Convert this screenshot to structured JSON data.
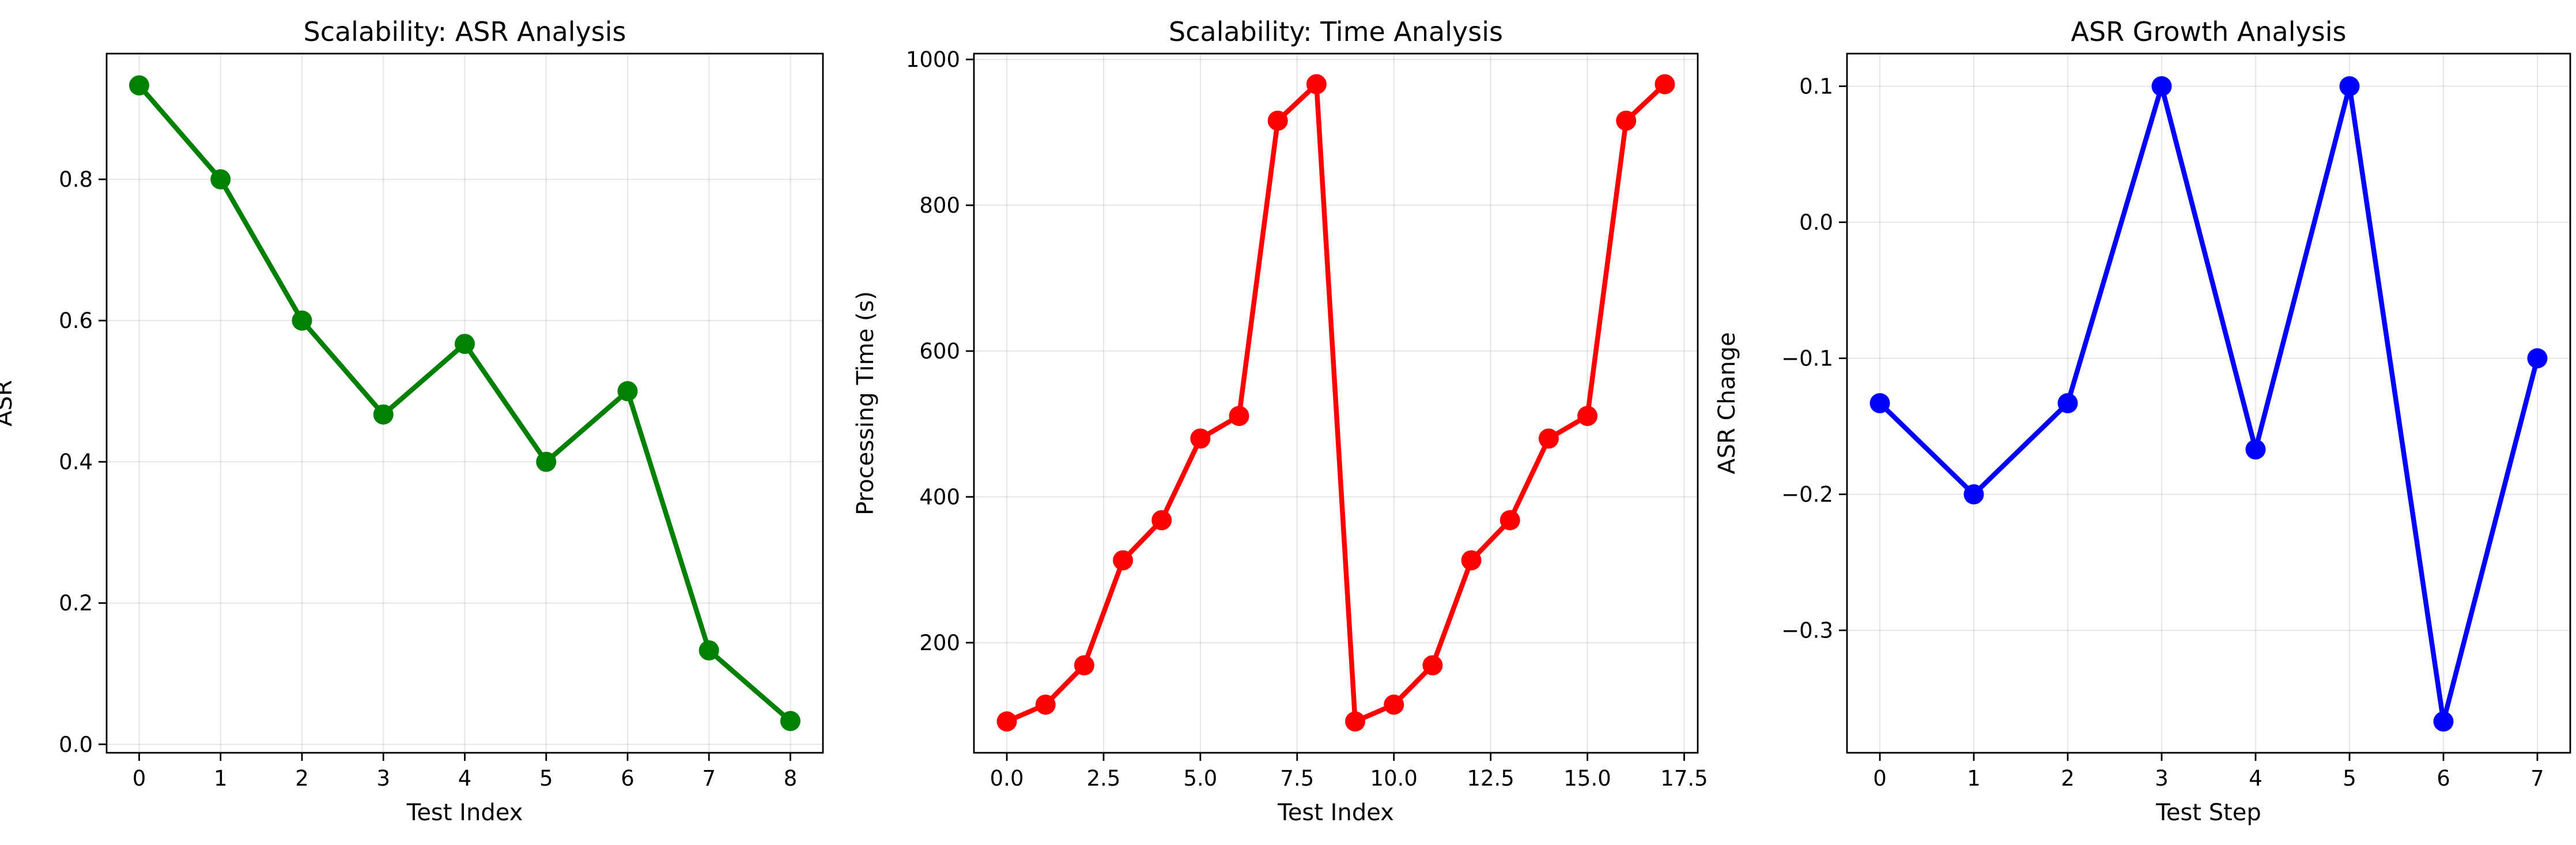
{
  "chart_data": [
    {
      "type": "line",
      "title": "Scalability: ASR Analysis",
      "xlabel": "Test Index",
      "ylabel": "ASR",
      "grid": true,
      "xlim": [
        -0.4,
        8.4
      ],
      "ylim": [
        -0.012,
        0.978
      ],
      "xticks": [
        0,
        1,
        2,
        3,
        4,
        5,
        6,
        7,
        8
      ],
      "xtick_labels": [
        "0",
        "1",
        "2",
        "3",
        "4",
        "5",
        "6",
        "7",
        "8"
      ],
      "yticks": [
        0.0,
        0.2,
        0.4,
        0.6,
        0.8
      ],
      "ytick_labels": [
        "0.0",
        "0.2",
        "0.4",
        "0.6",
        "0.8"
      ],
      "series": [
        {
          "color": "#008000",
          "x": [
            0,
            1,
            2,
            3,
            4,
            5,
            6,
            7,
            8
          ],
          "y": [
            0.933,
            0.8,
            0.6,
            0.467,
            0.567,
            0.4,
            0.5,
            0.133,
            0.033
          ]
        }
      ]
    },
    {
      "type": "line",
      "title": "Scalability: Time Analysis",
      "xlabel": "Test Index",
      "ylabel": "Processing Time (s)",
      "grid": true,
      "xlim": [
        -0.85,
        17.85
      ],
      "ylim": [
        49,
        1008
      ],
      "xticks": [
        0,
        2.5,
        5,
        7.5,
        10,
        12.5,
        15,
        17.5
      ],
      "xtick_labels": [
        "0.0",
        "2.5",
        "5.0",
        "7.5",
        "10.0",
        "12.5",
        "15.0",
        "17.5"
      ],
      "yticks": [
        200,
        400,
        600,
        800,
        1000
      ],
      "ytick_labels": [
        "200",
        "400",
        "600",
        "800",
        "1000"
      ],
      "series": [
        {
          "color": "#ff0000",
          "x": [
            0,
            1,
            2,
            3,
            4,
            5,
            6,
            7,
            8,
            9,
            10,
            11,
            12,
            13,
            14,
            15,
            16,
            17
          ],
          "y": [
            92,
            115,
            169,
            313,
            368,
            480,
            511,
            916,
            966,
            92,
            115,
            169,
            313,
            368,
            480,
            511,
            916,
            966
          ]
        }
      ]
    },
    {
      "type": "line",
      "title": "ASR Growth Analysis",
      "xlabel": "Test Step",
      "ylabel": "ASR Change",
      "grid": true,
      "xlim": [
        -0.35,
        7.35
      ],
      "ylim": [
        -0.39,
        0.124
      ],
      "xticks": [
        0,
        1,
        2,
        3,
        4,
        5,
        6,
        7
      ],
      "xtick_labels": [
        "0",
        "1",
        "2",
        "3",
        "4",
        "5",
        "6",
        "7"
      ],
      "yticks": [
        -0.3,
        -0.2,
        -0.1,
        0.0,
        0.1
      ],
      "ytick_labels": [
        "−0.3",
        "−0.2",
        "−0.1",
        "0.0",
        "0.1"
      ],
      "series": [
        {
          "color": "#0000ff",
          "x": [
            0,
            1,
            2,
            3,
            4,
            5,
            6,
            7
          ],
          "y": [
            -0.133,
            -0.2,
            -0.133,
            0.1,
            -0.167,
            0.1,
            -0.367,
            -0.1
          ]
        }
      ]
    }
  ]
}
